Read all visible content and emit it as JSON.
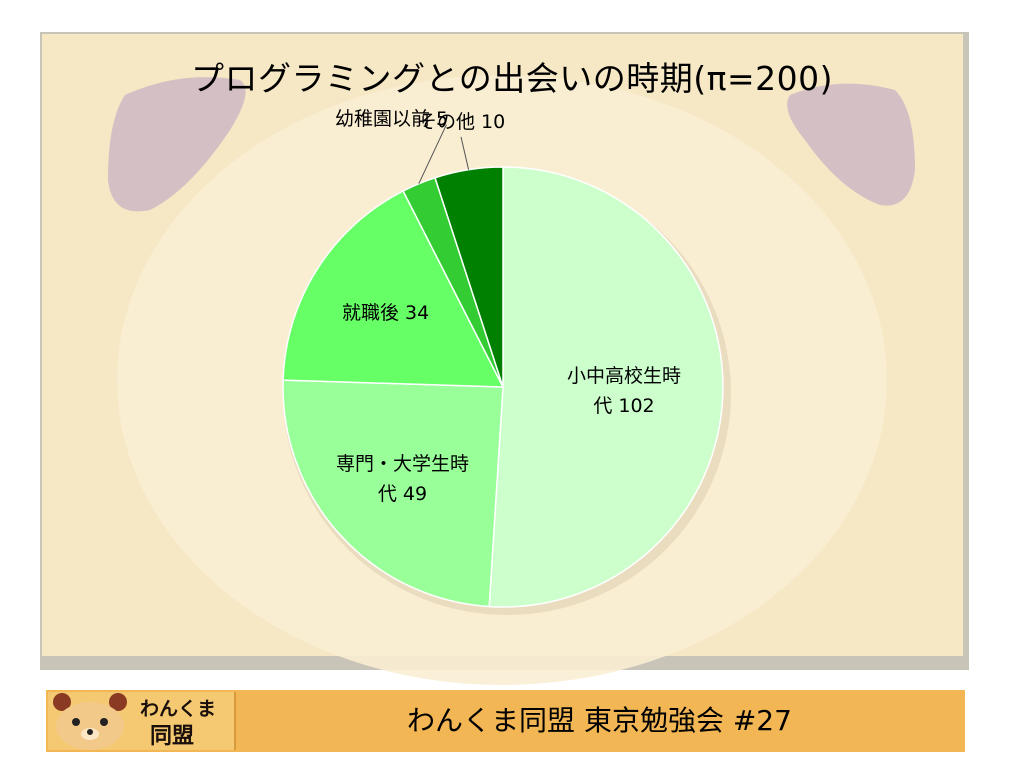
{
  "slide": {
    "title": "プログラミングとの出会いの時期(π=200)"
  },
  "chart_data": {
    "type": "pie",
    "title": "プログラミングとの出会いの時期(π=200)",
    "slices": [
      {
        "label": "小中高校生時代",
        "value": 102,
        "color": "#ccffcc",
        "text_lines": [
          "小中高校生時",
          "代 102"
        ]
      },
      {
        "label": "専門・大学生時代",
        "value": 49,
        "color": "#99ff99",
        "text_lines": [
          "専門・大学生時",
          "代 49"
        ]
      },
      {
        "label": "就職後",
        "value": 34,
        "color": "#66ff66",
        "text_lines": [
          "就職後 34"
        ]
      },
      {
        "label": "幼稚園以前",
        "value": 5,
        "color": "#33cc33",
        "text_lines": [
          "幼稚園以前 5"
        ]
      },
      {
        "label": "その他",
        "value": 10,
        "color": "#008000",
        "text_lines": [
          "その他 10"
        ]
      }
    ]
  },
  "footer": {
    "logo_text_top": "わんくま",
    "logo_text_bottom": "同盟",
    "text": "わんくま同盟 東京勉強会 #27"
  }
}
